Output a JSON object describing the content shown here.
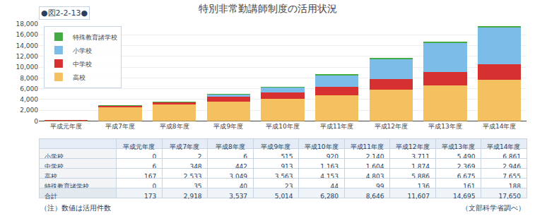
{
  "chart_data": {
    "type": "bar",
    "stacked": true,
    "title": "特別非常勤講師制度の活用状況",
    "categories": [
      "平成元年度",
      "平成7年度",
      "平成8年度",
      "平成9年度",
      "平成10年度",
      "平成11年度",
      "平成12年度",
      "平成13年度",
      "平成14年度"
    ],
    "series": [
      {
        "name": "高校",
        "color": "#F5C060",
        "values": [
          167,
          2533,
          3049,
          3563,
          4153,
          4803,
          5886,
          6675,
          7655
        ]
      },
      {
        "name": "中学校",
        "color": "#D63030",
        "values": [
          6,
          348,
          442,
          913,
          1163,
          1604,
          1874,
          2369,
          2946
        ]
      },
      {
        "name": "小学校",
        "color": "#7BBCE8",
        "values": [
          0,
          2,
          6,
          515,
          920,
          2140,
          3711,
          5490,
          6861
        ]
      },
      {
        "name": "特殊教育諸学校",
        "color": "#44AA44",
        "values": [
          0,
          35,
          40,
          23,
          44,
          99,
          136,
          161,
          188
        ]
      }
    ],
    "ylim": [
      0,
      18000
    ],
    "yticks": [
      0,
      {
        "value": 2000,
        "label": "2,000"
      },
      {
        "value": 4000,
        "label": "4,000"
      },
      {
        "value": 6000,
        "label": "6,000"
      },
      {
        "value": 8000,
        "label": "8,000"
      },
      {
        "value": 10000,
        "label": "10,000"
      },
      {
        "value": 12000,
        "label": "12,000"
      },
      {
        "value": 14000,
        "label": "14,000"
      },
      {
        "value": 16000,
        "label": "16,000"
      },
      {
        "value": 18000,
        "label": "18,000"
      }
    ],
    "grid": true,
    "legend": "upper left",
    "annotations": [
      "●図2-2-13●",
      "（注）数値は活用件数",
      "（文部科学省調べ）"
    ],
    "table": {
      "rows": [
        "小学校",
        "中学校",
        "高校",
        "特殊教育諸学校",
        "合計"
      ],
      "values": [
        [
          0,
          2,
          6,
          515,
          920,
          2140,
          3711,
          5490,
          6861
        ],
        [
          6,
          348,
          442,
          913,
          1163,
          1604,
          1874,
          2369,
          2946
        ],
        [
          167,
          2533,
          3049,
          3563,
          4153,
          4803,
          5886,
          6675,
          7655
        ],
        [
          0,
          35,
          40,
          23,
          44,
          99,
          136,
          161,
          188
        ],
        [
          173,
          2918,
          3537,
          5014,
          6280,
          8646,
          11607,
          14695,
          17650
        ]
      ],
      "value_labels": [
        [
          "0",
          "2",
          "6",
          "515",
          "920",
          "2,140",
          "3,711",
          "5,490",
          "6,861"
        ],
        [
          "6",
          "348",
          "442",
          "913",
          "1,163",
          "1,604",
          "1,874",
          "2,369",
          "2,946"
        ],
        [
          "167",
          "2,533",
          "3,049",
          "3,563",
          "4,153",
          "4,803",
          "5,886",
          "6,675",
          "7,655"
        ],
        [
          "0",
          "35",
          "40",
          "23",
          "44",
          "99",
          "136",
          "161",
          "188"
        ],
        [
          "173",
          "2,918",
          "3,537",
          "5,014",
          "6,280",
          "8,646",
          "11,607",
          "14,695",
          "17,650"
        ]
      ]
    }
  }
}
